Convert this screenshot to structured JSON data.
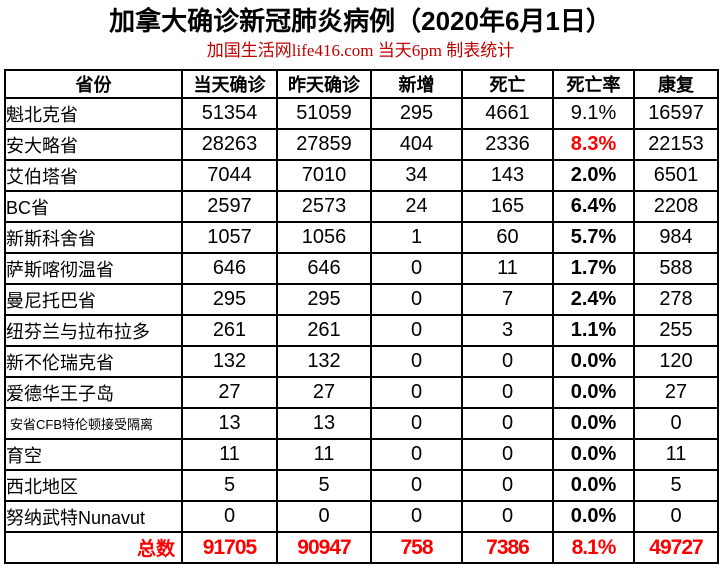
{
  "title": "加拿大确诊新冠肺炎病例（2020年6月1日）",
  "subtitle": "加国生活网life416.com 当天6pm 制表统计",
  "colors": {
    "title_text": "#000000",
    "subtitle_red": "#c00000",
    "highlight_red": "#ff0000",
    "border": "#000000",
    "background": "#ffffff"
  },
  "chart_data": {
    "type": "table",
    "title": "加拿大确诊新冠肺炎病例（2020年6月1日）",
    "subtitle": "加国生活网life416.com 当天6pm 制表统计",
    "columns": [
      "省份",
      "当天确诊",
      "昨天确诊",
      "新增",
      "死亡",
      "死亡率",
      "康复"
    ],
    "rows": [
      {
        "province": "魁北克省",
        "today": "51354",
        "yesterday": "51059",
        "new_cases": "295",
        "deaths": "4661",
        "death_rate": "9.1%",
        "recovered": "16597",
        "rate_bold": false,
        "rate_red": false,
        "small_label": false
      },
      {
        "province": "安大略省",
        "today": "28263",
        "yesterday": "27859",
        "new_cases": "404",
        "deaths": "2336",
        "death_rate": "8.3%",
        "recovered": "22153",
        "rate_bold": true,
        "rate_red": true,
        "small_label": false
      },
      {
        "province": "艾伯塔省",
        "today": "7044",
        "yesterday": "7010",
        "new_cases": "34",
        "deaths": "143",
        "death_rate": "2.0%",
        "recovered": "6501",
        "rate_bold": true,
        "rate_red": false,
        "small_label": false
      },
      {
        "province": "BC省",
        "today": "2597",
        "yesterday": "2573",
        "new_cases": "24",
        "deaths": "165",
        "death_rate": "6.4%",
        "recovered": "2208",
        "rate_bold": true,
        "rate_red": false,
        "small_label": false
      },
      {
        "province": "新斯科舍省",
        "today": "1057",
        "yesterday": "1056",
        "new_cases": "1",
        "deaths": "60",
        "death_rate": "5.7%",
        "recovered": "984",
        "rate_bold": true,
        "rate_red": false,
        "small_label": false
      },
      {
        "province": "萨斯喀彻温省",
        "today": "646",
        "yesterday": "646",
        "new_cases": "0",
        "deaths": "11",
        "death_rate": "1.7%",
        "recovered": "588",
        "rate_bold": true,
        "rate_red": false,
        "small_label": false
      },
      {
        "province": "曼尼托巴省",
        "today": "295",
        "yesterday": "295",
        "new_cases": "0",
        "deaths": "7",
        "death_rate": "2.4%",
        "recovered": "278",
        "rate_bold": true,
        "rate_red": false,
        "small_label": false
      },
      {
        "province": "纽芬兰与拉布拉多",
        "today": "261",
        "yesterday": "261",
        "new_cases": "0",
        "deaths": "3",
        "death_rate": "1.1%",
        "recovered": "255",
        "rate_bold": true,
        "rate_red": false,
        "small_label": false
      },
      {
        "province": "新不伦瑞克省",
        "today": "132",
        "yesterday": "132",
        "new_cases": "0",
        "deaths": "0",
        "death_rate": "0.0%",
        "recovered": "120",
        "rate_bold": true,
        "rate_red": false,
        "small_label": false
      },
      {
        "province": "爱德华王子岛",
        "today": "27",
        "yesterday": "27",
        "new_cases": "0",
        "deaths": "0",
        "death_rate": "0.0%",
        "recovered": "27",
        "rate_bold": true,
        "rate_red": false,
        "small_label": false
      },
      {
        "province": "安省CFB特伦顿接受隔离",
        "today": "13",
        "yesterday": "13",
        "new_cases": "0",
        "deaths": "0",
        "death_rate": "0.0%",
        "recovered": "0",
        "rate_bold": true,
        "rate_red": false,
        "small_label": true
      },
      {
        "province": "育空",
        "today": "11",
        "yesterday": "11",
        "new_cases": "0",
        "deaths": "0",
        "death_rate": "0.0%",
        "recovered": "11",
        "rate_bold": true,
        "rate_red": false,
        "small_label": false
      },
      {
        "province": "西北地区",
        "today": "5",
        "yesterday": "5",
        "new_cases": "0",
        "deaths": "0",
        "death_rate": "0.0%",
        "recovered": "5",
        "rate_bold": true,
        "rate_red": false,
        "small_label": false
      },
      {
        "province": "努纳武特Nunavut",
        "today": "0",
        "yesterday": "0",
        "new_cases": "0",
        "deaths": "0",
        "death_rate": "0.0%",
        "recovered": "0",
        "rate_bold": true,
        "rate_red": false,
        "small_label": false
      }
    ],
    "total_row": {
      "label": "总数",
      "today": "91705",
      "yesterday": "90947",
      "new_cases": "758",
      "deaths": "7386",
      "death_rate": "8.1%",
      "recovered": "49727"
    }
  }
}
